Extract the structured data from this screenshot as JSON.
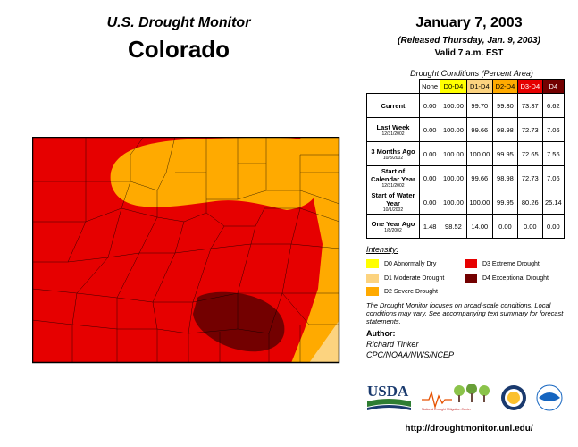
{
  "header": {
    "organization": "U.S. Drought Monitor",
    "state": "Colorado",
    "date": "January 7, 2003",
    "release": "(Released Thursday, Jan. 9, 2003)",
    "valid": "Valid 7 a.m. EST"
  },
  "table": {
    "title": "Drought Conditions (Percent Area)",
    "columns": [
      {
        "label": "None",
        "color": "#ffffff"
      },
      {
        "label": "D0-D4",
        "color": "#ffff00"
      },
      {
        "label": "D1-D4",
        "color": "#fcd37f"
      },
      {
        "label": "D2-D4",
        "color": "#ffaa00"
      },
      {
        "label": "D3-D4",
        "color": "#e60000"
      },
      {
        "label": "D4",
        "color": "#730000"
      }
    ],
    "rows": [
      {
        "label": "Current",
        "sub": "",
        "values": [
          "0.00",
          "100.00",
          "99.70",
          "99.30",
          "73.37",
          "6.62"
        ]
      },
      {
        "label": "Last Week",
        "sub": "12/31/2002",
        "values": [
          "0.00",
          "100.00",
          "99.66",
          "98.98",
          "72.73",
          "7.06"
        ]
      },
      {
        "label": "3 Months Ago",
        "sub": "10/8/2002",
        "values": [
          "0.00",
          "100.00",
          "100.00",
          "99.95",
          "72.65",
          "7.56"
        ]
      },
      {
        "label": "Start of Calendar Year",
        "sub": "12/31/2002",
        "values": [
          "0.00",
          "100.00",
          "99.66",
          "98.98",
          "72.73",
          "7.06"
        ]
      },
      {
        "label": "Start of Water Year",
        "sub": "10/1/2002",
        "values": [
          "0.00",
          "100.00",
          "100.00",
          "99.95",
          "80.26",
          "25.14"
        ]
      },
      {
        "label": "One Year Ago",
        "sub": "1/8/2002",
        "values": [
          "1.48",
          "98.52",
          "14.00",
          "0.00",
          "0.00",
          "0.00"
        ]
      }
    ]
  },
  "legend": {
    "title": "Intensity:",
    "items": [
      {
        "label": "D0 Abnormally Dry",
        "color": "#ffff00"
      },
      {
        "label": "D1 Moderate Drought",
        "color": "#fcd37f"
      },
      {
        "label": "D2 Severe Drought",
        "color": "#ffaa00"
      },
      {
        "label": "D3 Extreme Drought",
        "color": "#e60000"
      },
      {
        "label": "D4 Exceptional Drought",
        "color": "#730000"
      }
    ]
  },
  "disclaimer": "The Drought Monitor focuses on broad-scale conditions. Local conditions may vary. See accompanying text summary for forecast statements.",
  "author": {
    "label": "Author:",
    "name": "Richard Tinker",
    "org": "CPC/NOAA/NWS/NCEP"
  },
  "logos": {
    "usda": "USDA",
    "ndmc": "National Drought Mitigation Center",
    "usda_icon": "usda-logo-icon",
    "ndmc_icon": "ndmc-tree-logo-icon",
    "doc_icon": "commerce-seal-icon",
    "noaa_icon": "noaa-logo-icon"
  },
  "url": "http://droughtmonitor.unl.edu/"
}
